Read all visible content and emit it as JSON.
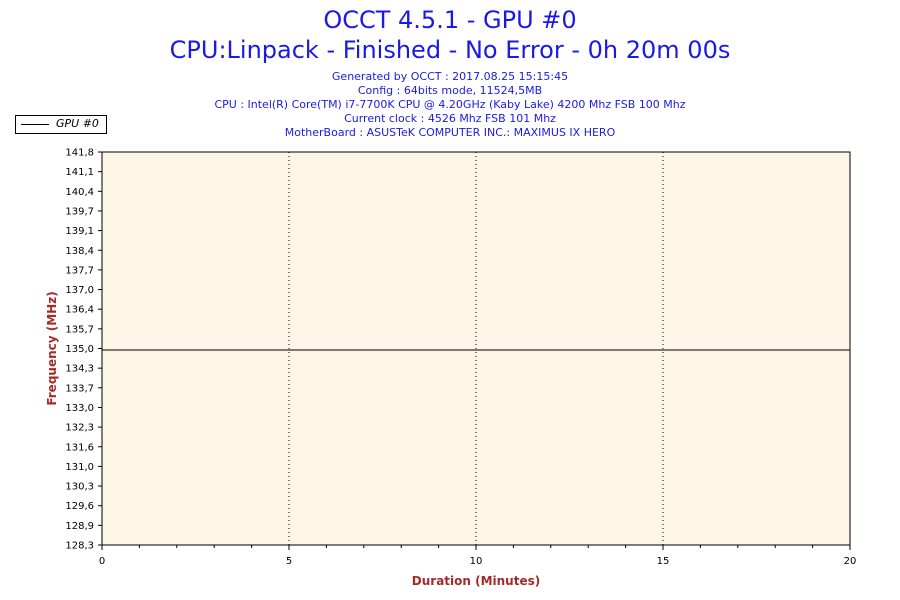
{
  "header": {
    "title": "OCCT 4.5.1 - GPU #0",
    "subtitle": "CPU:Linpack - Finished - No Error - 0h 20m 00s",
    "info_lines": [
      "Generated by OCCT : 2017.08.25 15:15:45",
      "Config : 64bits mode, 11524,5MB",
      "CPU : Intel(R) Core(TM) i7-7700K CPU @ 4.20GHz (Kaby Lake) 4200 Mhz FSB 100 Mhz",
      "Current clock : 4526 Mhz FSB 101 Mhz",
      "MotherBoard : ASUSTeK COMPUTER INC.: MAXIMUS IX HERO"
    ]
  },
  "legend": {
    "label": "GPU #0"
  },
  "colors": {
    "title": "#1a1ae6",
    "axis_title": "#a52a2a",
    "plot_background": "#fdf5e6",
    "series_line": "#000000"
  },
  "chart_data": {
    "type": "line",
    "title": "OCCT 4.5.1 - GPU #0",
    "xlabel": "Duration (Minutes)",
    "ylabel": "Frequency (MHz)",
    "xlim": [
      0,
      20
    ],
    "ylim": [
      128.3,
      141.8
    ],
    "x_ticks": [
      "0",
      "5",
      "10",
      "15",
      "20"
    ],
    "x_tick_values": [
      0,
      5,
      10,
      15,
      20
    ],
    "y_ticks": [
      "141,8",
      "141,1",
      "140,4",
      "139,7",
      "139,1",
      "138,4",
      "137,7",
      "137,0",
      "136,4",
      "135,7",
      "135,0",
      "134,3",
      "133,7",
      "133,0",
      "132,3",
      "131,6",
      "131,0",
      "130,3",
      "129,6",
      "128,9",
      "128,3"
    ],
    "grid": "vertical-dotted",
    "legend_position": "top-left",
    "series": [
      {
        "name": "GPU #0",
        "x": [
          0,
          20
        ],
        "y": [
          135.0,
          135.0
        ]
      }
    ]
  }
}
